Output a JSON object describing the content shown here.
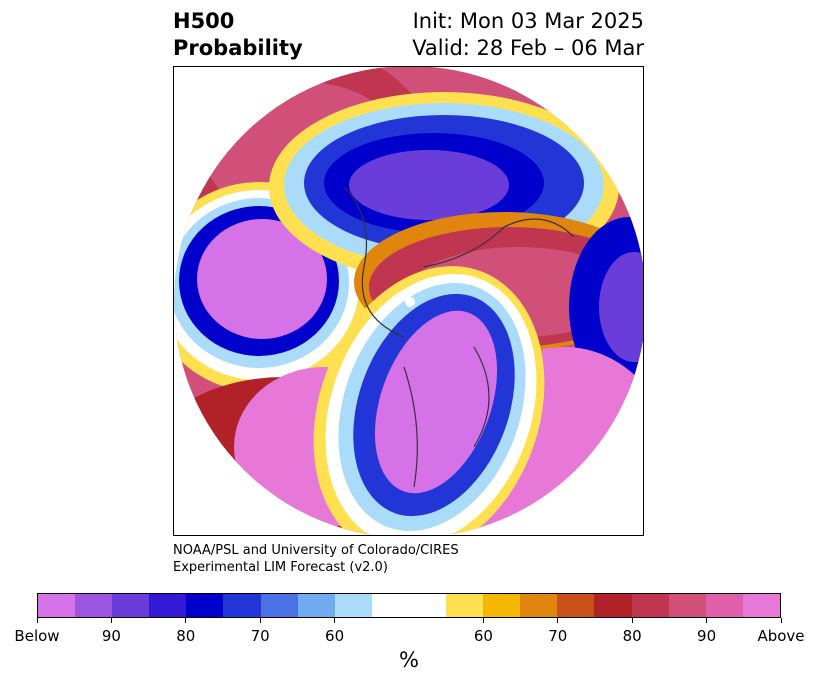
{
  "header": {
    "title_line1": "H500",
    "title_line2": "Probability",
    "init_label": "Init: Mon 03 Mar 2025",
    "valid_label": "Valid: 28 Feb – 06 Mar"
  },
  "credit": {
    "line1": "NOAA/PSL and University of Colorado/CIRES",
    "line2": "Experimental LIM Forecast (v2.0)"
  },
  "colorbar": {
    "colors": [
      "#d672e8",
      "#9b55e0",
      "#6a3ddb",
      "#3318d4",
      "#0000cc",
      "#2236d8",
      "#4a72e4",
      "#72acf0",
      "#aadcfa",
      "#ffffff",
      "#ffffff",
      "#ffe050",
      "#f4b800",
      "#e0860f",
      "#c8521a",
      "#b02228",
      "#c03550",
      "#d0507a",
      "#df60a8",
      "#e778d8"
    ],
    "tick_labels": [
      "Below",
      "90",
      "80",
      "70",
      "60",
      "60",
      "70",
      "80",
      "90",
      "Above"
    ],
    "unit_label": "%"
  },
  "map": {
    "palette": {
      "below_max": "#d672e8",
      "below_90": "#9b55e0",
      "below_80": "#3318d4",
      "below_70": "#0000cc",
      "below_60": "#4a72e4",
      "below_50": "#aadcfa",
      "neutral": "#ffffff",
      "above_50": "#ffe050",
      "above_60": "#f4b800",
      "above_70": "#e0860f",
      "above_80": "#b02228",
      "above_90": "#d0507a",
      "above_max": "#e778d8"
    }
  }
}
